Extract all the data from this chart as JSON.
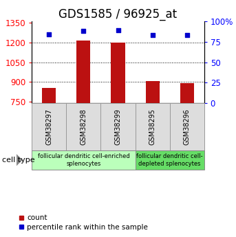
{
  "title": "GDS1585 / 96925_at",
  "samples": [
    "GSM38297",
    "GSM38298",
    "GSM38299",
    "GSM38295",
    "GSM38296"
  ],
  "counts": [
    855,
    1215,
    1200,
    905,
    893
  ],
  "percentiles": [
    84,
    88,
    89,
    83,
    83
  ],
  "ylim_left": [
    740,
    1360
  ],
  "ylim_right": [
    0,
    100
  ],
  "yticks_left": [
    750,
    900,
    1050,
    1200,
    1350
  ],
  "yticks_right": [
    0,
    25,
    50,
    75,
    100
  ],
  "bar_color": "#bb1111",
  "dot_color": "#0000cc",
  "group1_label": "follicular dendritic cell-enriched\nsplenocytes",
  "group2_label": "follicular dendritic cell-\ndepleted splenocytes",
  "group1_color": "#bbffbb",
  "group2_color": "#66dd66",
  "cell_type_label": "cell type",
  "legend_count": "count",
  "legend_pct": "percentile rank within the sample",
  "title_fontsize": 12,
  "tick_fontsize": 8.5,
  "sample_fontsize": 7,
  "group_fontsize": 6,
  "legend_fontsize": 7.5
}
